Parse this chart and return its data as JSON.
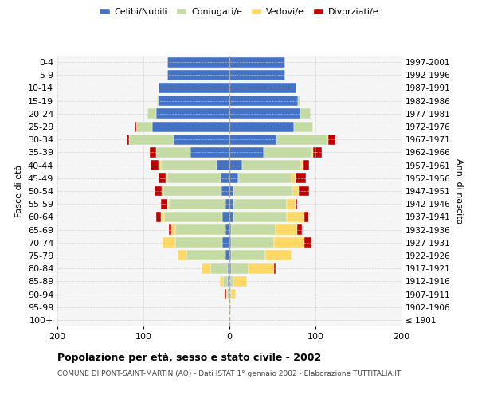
{
  "age_groups": [
    "100+",
    "95-99",
    "90-94",
    "85-89",
    "80-84",
    "75-79",
    "70-74",
    "65-69",
    "60-64",
    "55-59",
    "50-54",
    "45-49",
    "40-44",
    "35-39",
    "30-34",
    "25-29",
    "20-24",
    "15-19",
    "10-14",
    "5-9",
    "0-4"
  ],
  "birth_years": [
    "≤ 1901",
    "1902-1906",
    "1907-1911",
    "1912-1916",
    "1917-1921",
    "1922-1926",
    "1927-1931",
    "1932-1936",
    "1937-1941",
    "1942-1946",
    "1947-1951",
    "1952-1956",
    "1957-1961",
    "1962-1966",
    "1967-1971",
    "1972-1976",
    "1977-1981",
    "1982-1986",
    "1987-1991",
    "1992-1996",
    "1997-2001"
  ],
  "male": {
    "celibi": [
      0,
      0,
      0,
      2,
      2,
      5,
      8,
      5,
      8,
      5,
      9,
      10,
      15,
      45,
      65,
      90,
      85,
      82,
      82,
      72,
      72
    ],
    "coniugati": [
      0,
      1,
      3,
      5,
      20,
      45,
      55,
      58,
      68,
      65,
      68,
      62,
      65,
      40,
      52,
      18,
      10,
      2,
      0,
      0,
      0
    ],
    "vedovi": [
      0,
      0,
      1,
      4,
      10,
      10,
      15,
      5,
      4,
      2,
      2,
      2,
      2,
      0,
      0,
      0,
      0,
      0,
      0,
      0,
      0
    ],
    "divorziati": [
      0,
      0,
      2,
      0,
      0,
      0,
      0,
      2,
      5,
      8,
      8,
      8,
      10,
      8,
      2,
      2,
      0,
      0,
      0,
      0,
      0
    ]
  },
  "female": {
    "nubili": [
      0,
      0,
      0,
      0,
      2,
      2,
      2,
      2,
      5,
      5,
      5,
      10,
      15,
      40,
      55,
      75,
      82,
      80,
      78,
      65,
      65
    ],
    "coniugate": [
      0,
      0,
      2,
      5,
      20,
      40,
      50,
      52,
      62,
      62,
      68,
      62,
      68,
      55,
      60,
      22,
      12,
      2,
      0,
      0,
      0
    ],
    "vedove": [
      0,
      2,
      5,
      15,
      30,
      30,
      35,
      25,
      20,
      10,
      8,
      5,
      2,
      2,
      0,
      0,
      0,
      0,
      0,
      0,
      0
    ],
    "divorziate": [
      0,
      0,
      0,
      0,
      2,
      0,
      8,
      5,
      5,
      2,
      12,
      12,
      8,
      10,
      8,
      0,
      0,
      0,
      0,
      0,
      0
    ]
  },
  "colors": {
    "celibi_nubili": "#4472c4",
    "coniugati": "#c5dba4",
    "vedovi": "#ffd966",
    "divorziati": "#c00000"
  },
  "xlim": [
    -200,
    200
  ],
  "xticks": [
    -200,
    -100,
    0,
    100,
    200
  ],
  "xticklabels": [
    "200",
    "100",
    "0",
    "100",
    "200"
  ],
  "title": "Popolazione per età, sesso e stato civile - 2002",
  "subtitle": "COMUNE DI PONT-SAINT-MARTIN (AO) - Dati ISTAT 1° gennaio 2002 - Elaborazione TUTTITALIA.IT",
  "ylabel_left": "Fasce di età",
  "ylabel_right": "Anni di nascita",
  "legend_labels": [
    "Celibi/Nubili",
    "Coniugati/e",
    "Vedovi/e",
    "Divorziati/e"
  ],
  "bg_color": "#ffffff",
  "plot_bg": "#f5f5f5",
  "grid_color": "#cccccc"
}
